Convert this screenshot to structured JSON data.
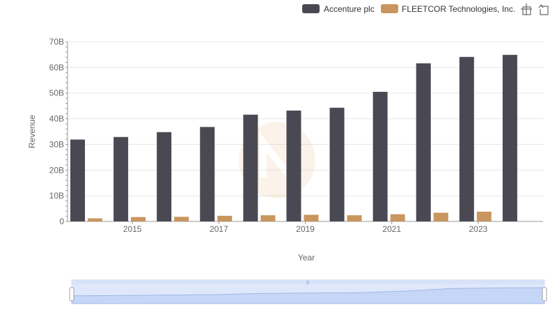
{
  "chart_data": {
    "type": "bar",
    "title": "",
    "xlabel": "Year",
    "ylabel": "Revenue",
    "ylim": [
      0,
      70000000000
    ],
    "y_ticks": [
      0,
      10000000000,
      20000000000,
      30000000000,
      40000000000,
      50000000000,
      60000000000,
      70000000000
    ],
    "y_tick_labels": [
      "0",
      "10B",
      "20B",
      "30B",
      "40B",
      "50B",
      "60B",
      "70B"
    ],
    "categories": [
      "2014",
      "2015",
      "2016",
      "2017",
      "2018",
      "2019",
      "2020",
      "2021",
      "2022",
      "2023",
      "2024"
    ],
    "x_tick_labels": [
      "2015",
      "2017",
      "2019",
      "2021",
      "2023"
    ],
    "grid": true,
    "legend_position": "top-right",
    "series": [
      {
        "name": "Accenture plc",
        "color": "#4a4953",
        "values": [
          31900000000,
          32900000000,
          34800000000,
          36800000000,
          41600000000,
          43200000000,
          44300000000,
          50500000000,
          61600000000,
          64100000000,
          64900000000
        ]
      },
      {
        "name": "FLEETCOR Technologies, Inc.",
        "color": "#c8965e",
        "values": [
          1200000000,
          1700000000,
          1800000000,
          2200000000,
          2400000000,
          2600000000,
          2400000000,
          2800000000,
          3400000000,
          3800000000,
          0
        ]
      }
    ]
  },
  "icons": {
    "toolbar": [
      "zoom-icon",
      "restore-icon"
    ]
  },
  "range_slider": {
    "start": 0,
    "end": 1,
    "fill_color": "#dbe6fb",
    "border_color": "#c7d4f0"
  }
}
